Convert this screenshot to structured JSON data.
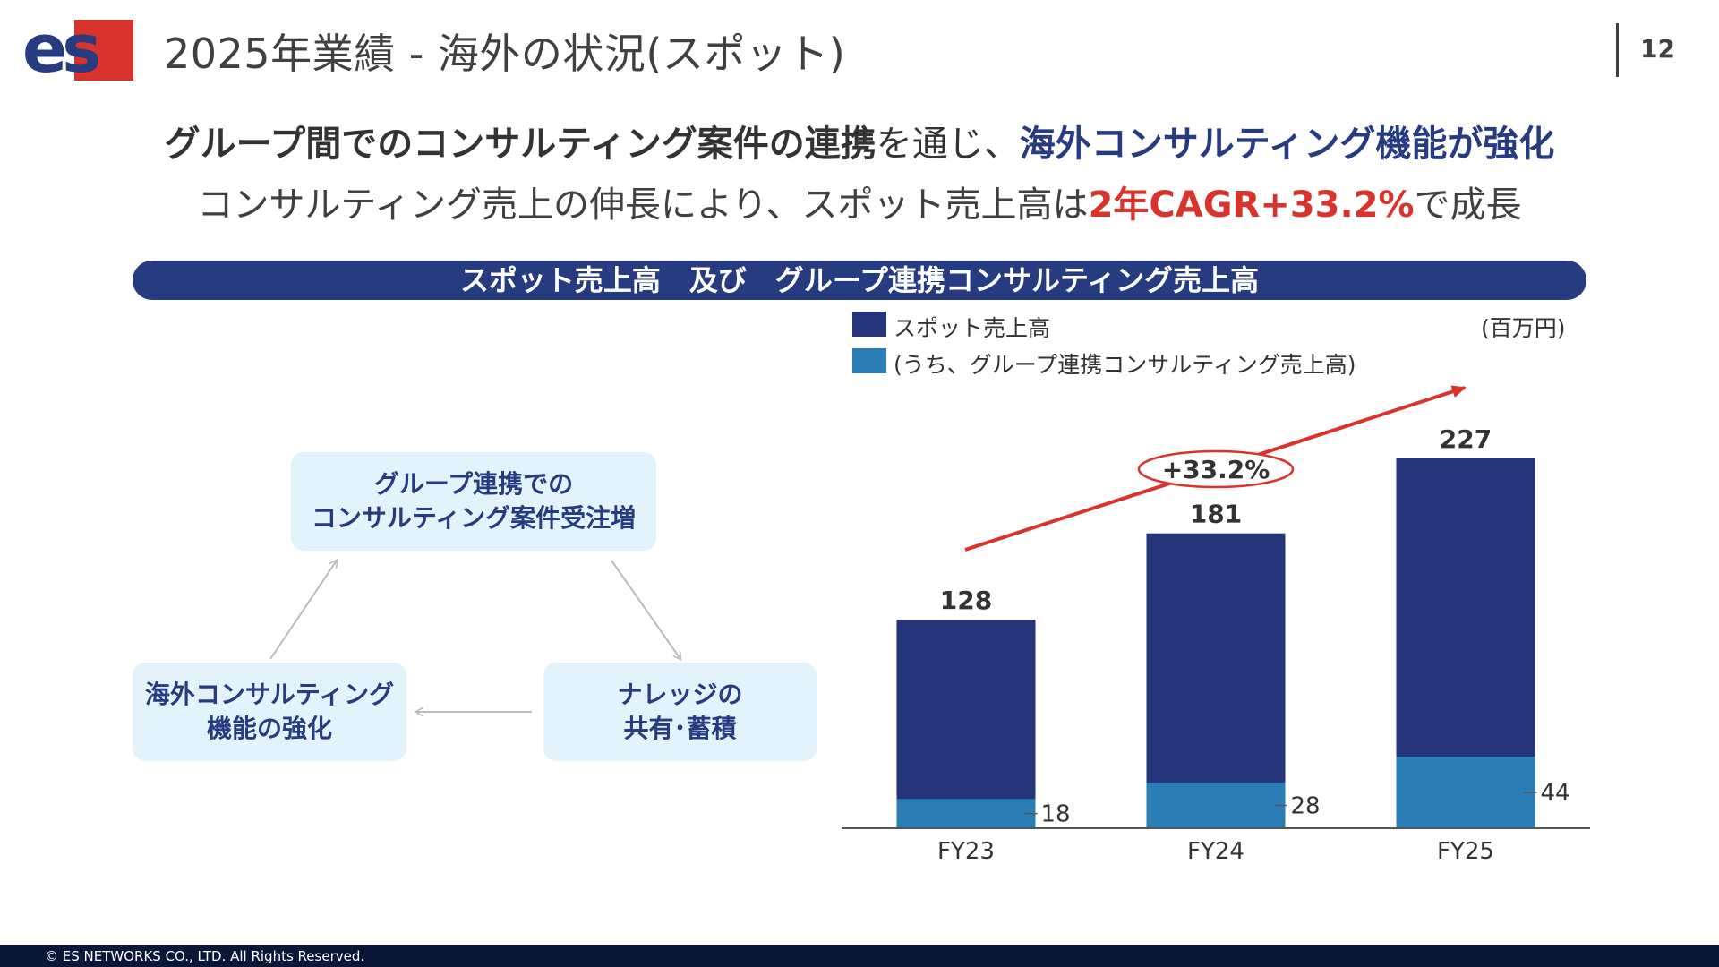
{
  "header": {
    "logo_text": "es",
    "title": "2025年業績 - 海外の状況(スポット)",
    "page_number": "12"
  },
  "headline": {
    "line1_part1": "グループ間でのコンサルティング案件の連携",
    "line1_part2": "を通じ、",
    "line1_part3": "海外コンサルティング機能が強化",
    "line2_part1": "コンサルティング売上の伸長により、スポット売上高は",
    "line2_part2": "2年CAGR+33.2%",
    "line2_part3": "で成長"
  },
  "banner": {
    "title": "スポット売上高　及び　グループ連携コンサルティング売上高"
  },
  "cycle": {
    "top_line1": "グループ連携での",
    "top_line2": "コンサルティング案件受注増",
    "right_line1": "ナレッジの",
    "right_line2": "共有･蓄積",
    "left_line1": "海外コンサルティング",
    "left_line2": "機能の強化"
  },
  "colors": {
    "navy": "#243679",
    "blue": "#2a7db5",
    "red": "#d9342b"
  },
  "chart_data": {
    "type": "bar",
    "categories": [
      "FY23",
      "FY24",
      "FY25"
    ],
    "unit": "(百万円)",
    "series": [
      {
        "name": "スポット売上高",
        "values": [
          128,
          181,
          227
        ]
      },
      {
        "name": "(うち、グループ連携コンサルティング売上高)",
        "values": [
          18,
          28,
          44
        ]
      }
    ],
    "value_labels": [
      "128",
      "181",
      "227"
    ],
    "sub_value_labels": [
      "18",
      "28",
      "44"
    ],
    "cagr_label": "+33.2%",
    "ylim": [
      0,
      227
    ],
    "legend_position": "top-left",
    "grid": false
  },
  "footer": {
    "copyright": "© ES NETWORKS CO., LTD. All Rights Reserved."
  }
}
